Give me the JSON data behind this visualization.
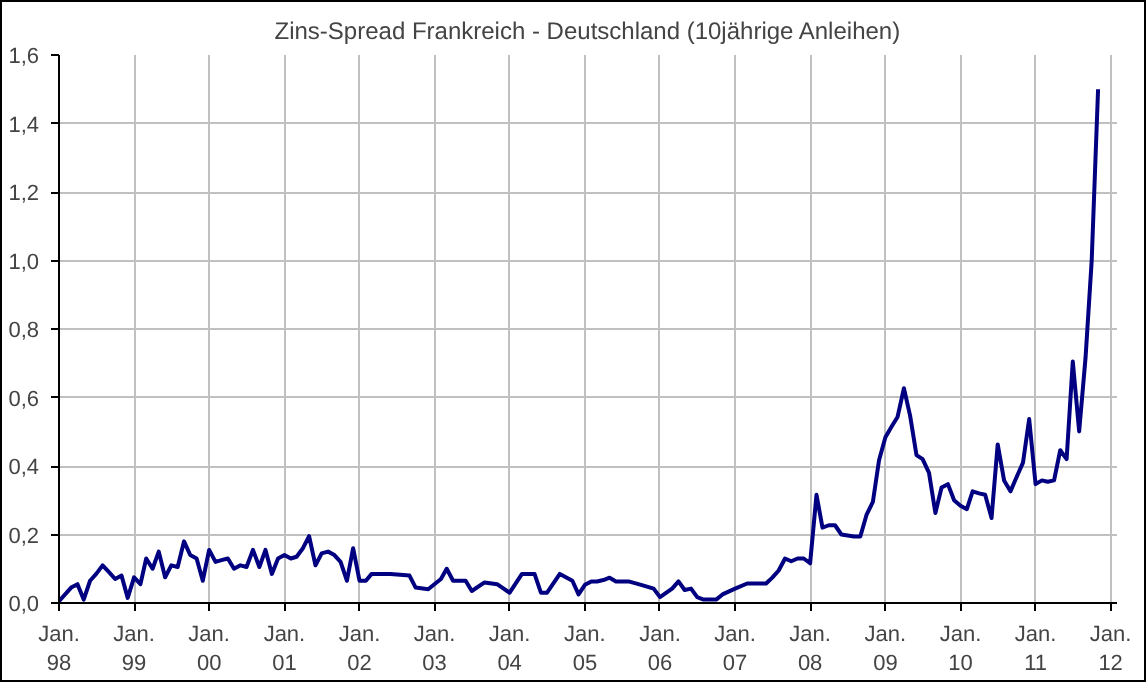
{
  "chart_data": {
    "type": "line",
    "title": "Zins-Spread Frankreich - Deutschland (10jährige Anleihen)",
    "x": [
      "1998-01",
      "1998-03",
      "1998-04",
      "1998-05",
      "1998-06",
      "1998-07",
      "1998-08",
      "1998-09",
      "1998-10",
      "1998-11",
      "1998-12",
      "1999-01",
      "1999-02",
      "1999-03",
      "1999-04",
      "1999-05",
      "1999-06",
      "1999-07",
      "1999-08",
      "1999-09",
      "1999-10",
      "1999-11",
      "1999-12",
      "2000-01",
      "2000-02",
      "2000-03",
      "2000-04",
      "2000-05",
      "2000-06",
      "2000-07",
      "2000-08",
      "2000-09",
      "2000-10",
      "2000-11",
      "2000-12",
      "2001-01",
      "2001-02",
      "2001-03",
      "2001-04",
      "2001-05",
      "2001-06",
      "2001-07",
      "2001-08",
      "2001-09",
      "2001-10",
      "2001-11",
      "2001-12",
      "2002-01",
      "2002-02",
      "2002-03",
      "2002-06",
      "2002-09",
      "2002-10",
      "2002-12",
      "2003-02",
      "2003-03",
      "2003-04",
      "2003-06",
      "2003-07",
      "2003-09",
      "2003-11",
      "2004-01",
      "2004-03",
      "2004-05",
      "2004-06",
      "2004-07",
      "2004-09",
      "2004-11",
      "2004-12",
      "2005-01",
      "2005-02",
      "2005-03",
      "2005-04",
      "2005-05",
      "2005-06",
      "2005-08",
      "2005-10",
      "2005-12",
      "2006-01",
      "2006-03",
      "2006-04",
      "2006-05",
      "2006-06",
      "2006-07",
      "2006-08",
      "2006-10",
      "2006-11",
      "2007-01",
      "2007-03",
      "2007-06",
      "2007-07",
      "2007-08",
      "2007-09",
      "2007-10",
      "2007-11",
      "2007-12",
      "2008-01",
      "2008-02",
      "2008-03",
      "2008-04",
      "2008-05",
      "2008-06",
      "2008-08",
      "2008-09",
      "2008-10",
      "2008-11",
      "2008-12",
      "2009-01",
      "2009-02",
      "2009-03",
      "2009-04",
      "2009-05",
      "2009-06",
      "2009-07",
      "2009-08",
      "2009-09",
      "2009-10",
      "2009-11",
      "2009-12",
      "2010-01",
      "2010-02",
      "2010-03",
      "2010-04",
      "2010-05",
      "2010-06",
      "2010-07",
      "2010-08",
      "2010-09",
      "2010-10",
      "2010-11",
      "2010-12",
      "2011-01",
      "2011-02",
      "2011-03",
      "2011-04",
      "2011-05",
      "2011-06",
      "2011-07",
      "2011-08",
      "2011-09",
      "2011-10",
      "2011-11"
    ],
    "series": [
      {
        "color": "#000080",
        "values": [
          0.005,
          0.045,
          0.055,
          0.01,
          0.065,
          0.085,
          0.11,
          0.09,
          0.07,
          0.08,
          0.015,
          0.075,
          0.055,
          0.13,
          0.1,
          0.15,
          0.075,
          0.11,
          0.105,
          0.18,
          0.14,
          0.13,
          0.065,
          0.155,
          0.12,
          0.125,
          0.13,
          0.1,
          0.11,
          0.105,
          0.155,
          0.105,
          0.155,
          0.085,
          0.13,
          0.14,
          0.13,
          0.135,
          0.16,
          0.195,
          0.11,
          0.145,
          0.15,
          0.14,
          0.12,
          0.065,
          0.16,
          0.065,
          0.065,
          0.085,
          0.085,
          0.08,
          0.045,
          0.04,
          0.07,
          0.1,
          0.065,
          0.065,
          0.035,
          0.06,
          0.055,
          0.03,
          0.085,
          0.085,
          0.03,
          0.03,
          0.085,
          0.065,
          0.025,
          0.053,
          0.063,
          0.063,
          0.067,
          0.074,
          0.063,
          0.063,
          0.053,
          0.042,
          0.017,
          0.042,
          0.063,
          0.038,
          0.042,
          0.017,
          0.01,
          0.01,
          0.025,
          0.042,
          0.057,
          0.057,
          0.074,
          0.095,
          0.13,
          0.122,
          0.13,
          0.13,
          0.116,
          0.316,
          0.22,
          0.227,
          0.227,
          0.2,
          0.194,
          0.194,
          0.257,
          0.295,
          0.417,
          0.484,
          0.516,
          0.543,
          0.627,
          0.547,
          0.432,
          0.42,
          0.38,
          0.263,
          0.337,
          0.347,
          0.3,
          0.284,
          0.274,
          0.326,
          0.32,
          0.316,
          0.248,
          0.463,
          0.358,
          0.326,
          0.368,
          0.41,
          0.537,
          0.347,
          0.358,
          0.354,
          0.358,
          0.446,
          0.42,
          0.705,
          0.501,
          0.716,
          1.0,
          1.5
        ]
      }
    ],
    "xlim": [
      "1998-01",
      "2012-02"
    ],
    "xticks": [
      {
        "value": "1998-01",
        "label": "Jan.\n98"
      },
      {
        "value": "1999-01",
        "label": "Jan.\n99"
      },
      {
        "value": "2000-01",
        "label": "Jan.\n00"
      },
      {
        "value": "2001-01",
        "label": "Jan.\n01"
      },
      {
        "value": "2002-01",
        "label": "Jan.\n02"
      },
      {
        "value": "2003-01",
        "label": "Jan.\n03"
      },
      {
        "value": "2004-01",
        "label": "Jan.\n04"
      },
      {
        "value": "2005-01",
        "label": "Jan.\n05"
      },
      {
        "value": "2006-01",
        "label": "Jan.\n06"
      },
      {
        "value": "2007-01",
        "label": "Jan.\n07"
      },
      {
        "value": "2008-01",
        "label": "Jan.\n08"
      },
      {
        "value": "2009-01",
        "label": "Jan.\n09"
      },
      {
        "value": "2010-01",
        "label": "Jan.\n10"
      },
      {
        "value": "2011-01",
        "label": "Jan.\n11"
      },
      {
        "value": "2012-01",
        "label": "Jan.\n12"
      }
    ],
    "ylim": [
      0,
      1.6
    ],
    "yticks": [
      {
        "value": 0,
        "label": "0,0"
      },
      {
        "value": 0.2,
        "label": "0,2"
      },
      {
        "value": 0.4,
        "label": "0,4"
      },
      {
        "value": 0.6,
        "label": "0,6"
      },
      {
        "value": 0.8,
        "label": "0,8"
      },
      {
        "value": 1.0,
        "label": "1,0"
      },
      {
        "value": 1.2,
        "label": "1,2"
      },
      {
        "value": 1.4,
        "label": "1,4"
      },
      {
        "value": 1.6,
        "label": "1,6"
      }
    ],
    "grid": true,
    "marker": "none",
    "line_style": "solid"
  }
}
